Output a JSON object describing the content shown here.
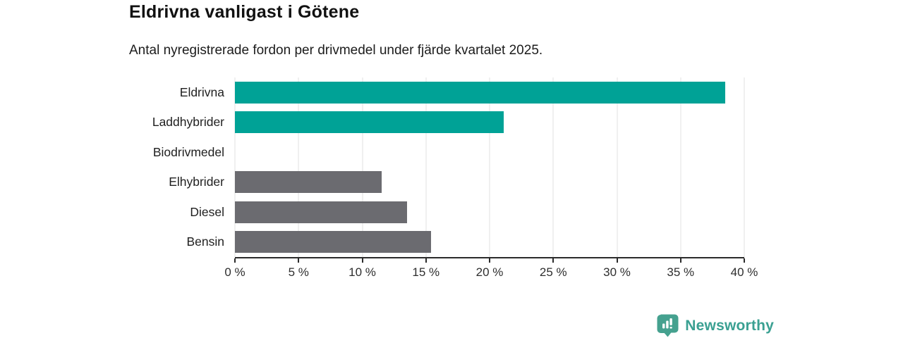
{
  "header": {
    "title": "Eldrivna vanligast i Götene",
    "subtitle": "Antal nyregistrerade fordon per drivmedel under fjärde kvartalet 2025."
  },
  "chart_data": {
    "type": "bar",
    "orientation": "horizontal",
    "title": "Eldrivna vanligast i Götene",
    "subtitle": "Antal nyregistrerade fordon per drivmedel under fjärde kvartalet 2025.",
    "categories": [
      "Eldrivna",
      "Laddhybrider",
      "Biodrivmedel",
      "Elhybrider",
      "Diesel",
      "Bensin"
    ],
    "values": [
      38.5,
      21.1,
      0,
      11.5,
      13.5,
      15.4
    ],
    "unit": "%",
    "xlim": [
      0,
      40
    ],
    "x_ticks": [
      0,
      5,
      10,
      15,
      20,
      25,
      30,
      35,
      40
    ],
    "x_tick_labels": [
      "0 %",
      "5 %",
      "10 %",
      "15 %",
      "20 %",
      "25 %",
      "30 %",
      "35 %",
      "40 %"
    ],
    "bar_colors": [
      "#00a296",
      "#00a296",
      "#00a296",
      "#6b6b70",
      "#6b6b70",
      "#6b6b70"
    ],
    "highlight_color": "#00a296",
    "base_color": "#6b6b70",
    "grid": "vertical",
    "gridline_color": "#e2e2e2",
    "axis_color": "#2b2b2b",
    "legend": "none"
  },
  "branding": {
    "logo_text": "Newsworthy",
    "text_color": "#3aa092",
    "badge_color": "#45a18f"
  }
}
